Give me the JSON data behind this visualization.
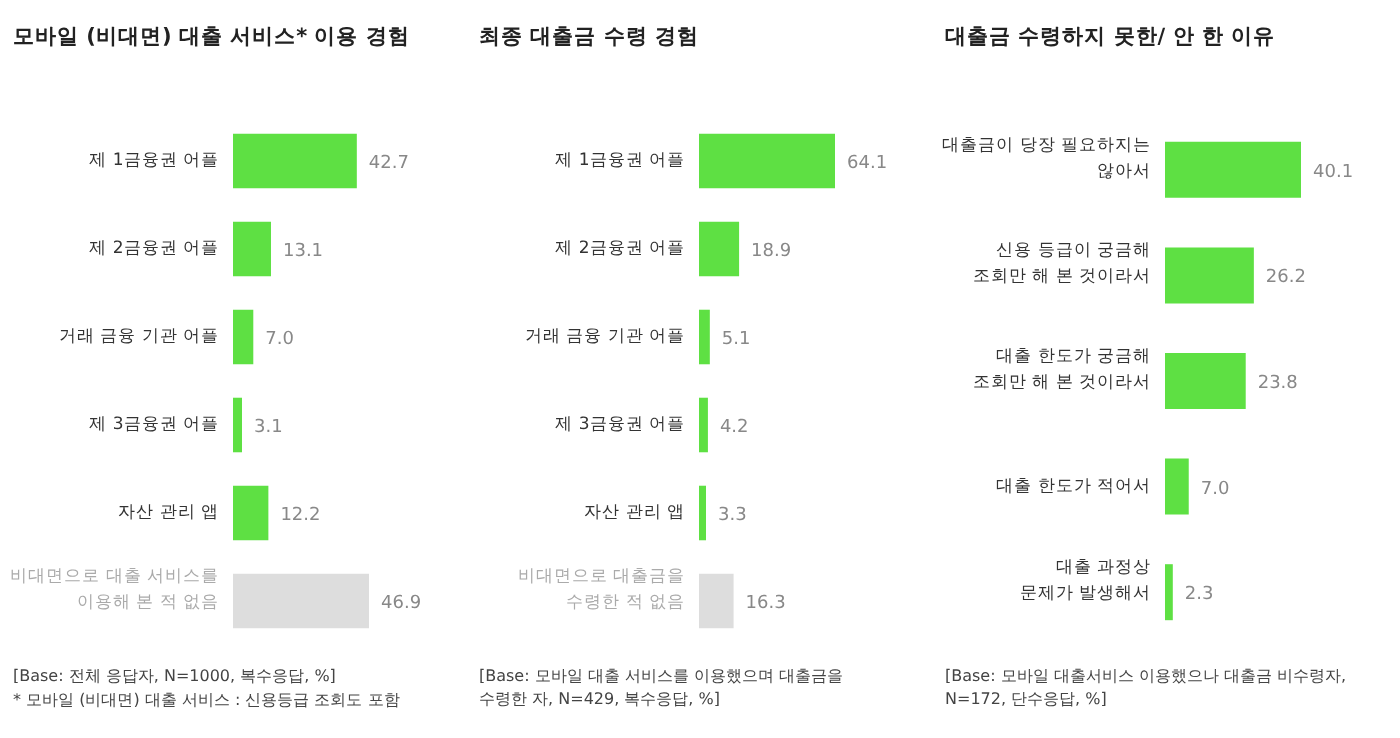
{
  "chart_data": [
    {
      "type": "bar",
      "orientation": "horizontal",
      "title": "모바일 (비대면) 대출 서비스* 이용 경험",
      "categories": [
        "제 1금융권 어플",
        "제 2금융권 어플",
        "거래 금융 기관 어플",
        "제 3금융권 어플",
        "자산 관리 앱",
        "비대면으로 대출 서비스를\n이용해 본 적 없음"
      ],
      "values": [
        42.7,
        13.1,
        7.0,
        3.1,
        12.2,
        46.9
      ],
      "value_labels": [
        "42.7",
        "13.1",
        "7.0",
        "3.1",
        "12.2",
        "46.9"
      ],
      "colors": [
        "#5ee043",
        "#5ee043",
        "#5ee043",
        "#5ee043",
        "#5ee043",
        "#dddddd"
      ],
      "annotations": [
        "[Base: 전체 응답자, N=1000, 복수응답, %]",
        "* 모바일 (비대면) 대출 서비스 : 신용등급 조회도 포함"
      ]
    },
    {
      "type": "bar",
      "orientation": "horizontal",
      "title": "최종 대출금 수령 경험",
      "categories": [
        "제 1금융권 어플",
        "제 2금융권 어플",
        "거래 금융 기관 어플",
        "제 3금융권 어플",
        "자산 관리 앱",
        "비대면으로 대출금을\n수령한 적 없음"
      ],
      "values": [
        64.1,
        18.9,
        5.1,
        4.2,
        3.3,
        16.3
      ],
      "value_labels": [
        "64.1",
        "18.9",
        "5.1",
        "4.2",
        "3.3",
        "16.3"
      ],
      "colors": [
        "#5ee043",
        "#5ee043",
        "#5ee043",
        "#5ee043",
        "#5ee043",
        "#dddddd"
      ],
      "annotations": [
        "[Base: 모바일 대출 서비스를 이용했으며 대출금을\n수령한 자, N=429, 복수응답, %]"
      ]
    },
    {
      "type": "bar",
      "orientation": "horizontal",
      "title": "대출금 수령하지 못한/ 안 한 이유",
      "categories": [
        "대출금이 당장 필요하지는\n않아서",
        "신용 등급이 궁금해\n조회만 해 본 것이라서",
        "대출 한도가 궁금해\n조회만 해 본 것이라서",
        "대출 한도가 적어서",
        "대출 과정상\n문제가 발생해서"
      ],
      "values": [
        40.1,
        26.2,
        23.8,
        7.0,
        2.3
      ],
      "value_labels": [
        "40.1",
        "26.2",
        "23.8",
        "7.0",
        "2.3"
      ],
      "colors": [
        "#5ee043",
        "#5ee043",
        "#5ee043",
        "#5ee043",
        "#5ee043"
      ],
      "annotations": [
        "[Base: 모바일 대출서비스 이용했으나 대출금 비수령자,\nN=172, 단수응답, %]"
      ]
    }
  ]
}
